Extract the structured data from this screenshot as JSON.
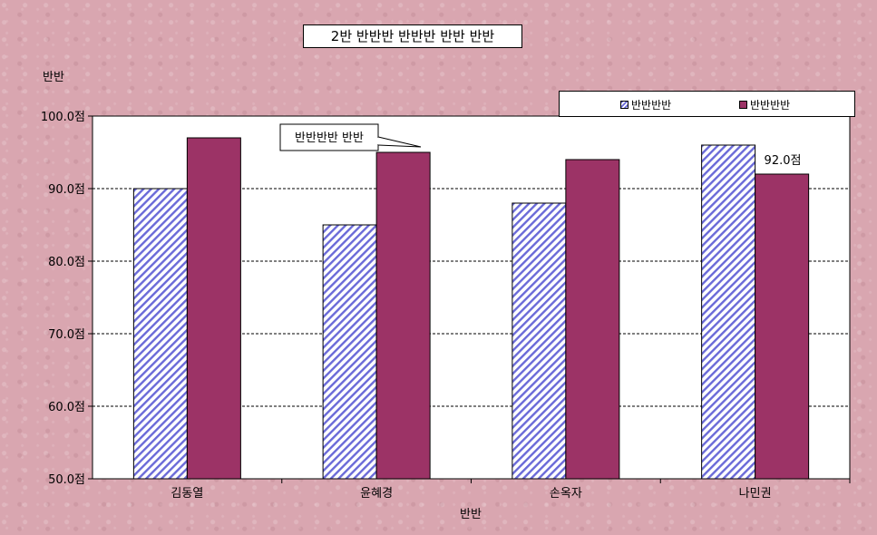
{
  "chart_data": {
    "type": "bar",
    "title": "2반 반반반 반반반 반반 반반",
    "ylabel": "반반",
    "xlabel": "반반",
    "categories": [
      "김동열",
      "윤혜경",
      "손옥자",
      "나민권"
    ],
    "series": [
      {
        "name": "반반반반",
        "values": [
          90,
          85,
          88,
          96
        ],
        "color": "#6a6ad8",
        "pattern": "diagonal-hatch"
      },
      {
        "name": "반반반반",
        "values": [
          97,
          95,
          94,
          92
        ],
        "color": "#9c3366"
      }
    ],
    "ylim": [
      50,
      100
    ],
    "yticks": [
      "50.0점",
      "60.0점",
      "70.0점",
      "80.0점",
      "90.0점",
      "100.0점"
    ],
    "grid": true,
    "legend_position": "top-right",
    "callout": "반반반반 반반",
    "data_label": "92.0점"
  }
}
